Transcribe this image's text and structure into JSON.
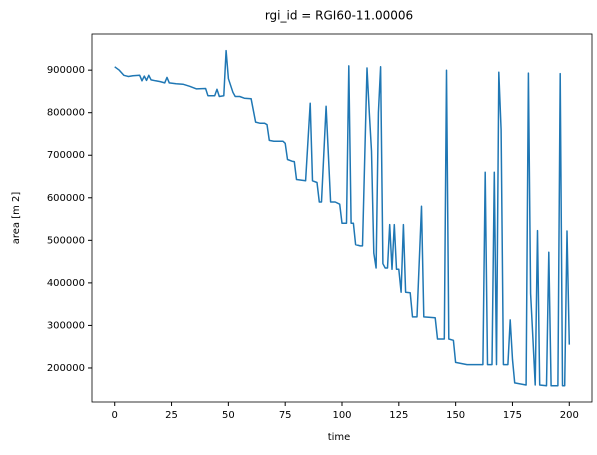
{
  "chart_data": {
    "type": "line",
    "title": "rgi_id = RGI60-11.00006",
    "xlabel": "time",
    "ylabel": "area [m 2]",
    "xlim": [
      -10,
      210
    ],
    "ylim": [
      120000,
      985000
    ],
    "xticks": [
      0,
      25,
      50,
      75,
      100,
      125,
      150,
      175,
      200
    ],
    "yticks": [
      200000,
      300000,
      400000,
      500000,
      600000,
      700000,
      800000,
      900000
    ],
    "series": [
      {
        "name": "area",
        "color": "#1f77b4",
        "x": [
          0,
          2,
          4,
          6,
          8,
          11,
          12,
          13,
          14,
          15,
          16,
          18,
          20,
          22,
          23,
          24,
          27,
          30,
          33,
          36,
          40,
          41,
          44,
          45,
          46,
          48,
          49,
          50,
          52,
          53,
          55,
          57,
          60,
          62,
          64,
          66,
          67,
          68,
          70,
          74,
          75,
          76,
          78,
          79,
          80,
          84,
          86,
          87,
          89,
          90,
          91,
          93,
          94,
          95,
          97,
          99,
          100,
          102,
          103,
          104,
          105,
          106,
          108,
          109,
          111,
          112,
          113,
          114,
          115,
          116,
          117,
          118,
          119,
          120,
          121,
          122,
          123,
          124,
          125,
          126,
          127,
          128,
          130,
          131,
          133,
          135,
          136,
          141,
          142,
          145,
          146,
          147,
          149,
          150,
          155,
          162,
          163,
          164,
          166,
          167,
          168,
          169,
          170,
          171,
          173,
          174,
          175,
          176,
          181,
          182,
          183,
          184,
          185,
          186,
          187,
          190,
          191,
          192,
          195,
          196,
          197,
          198,
          199,
          200
        ],
        "values": [
          908000,
          900000,
          888000,
          885000,
          887000,
          888000,
          875000,
          886000,
          876000,
          888000,
          877000,
          875000,
          873000,
          870000,
          883000,
          870000,
          868000,
          867000,
          862000,
          856000,
          857000,
          840000,
          840000,
          855000,
          838000,
          840000,
          946000,
          880000,
          848000,
          838000,
          838000,
          834000,
          833000,
          778000,
          775000,
          775000,
          772000,
          735000,
          733000,
          733000,
          728000,
          690000,
          686000,
          685000,
          643000,
          640000,
          822000,
          640000,
          636000,
          590000,
          590000,
          815000,
          700000,
          590000,
          590000,
          585000,
          540000,
          540000,
          910000,
          540000,
          540000,
          490000,
          487000,
          487000,
          905000,
          800000,
          710000,
          470000,
          435000,
          800000,
          908000,
          445000,
          435000,
          435000,
          537000,
          432000,
          537000,
          432000,
          432000,
          378000,
          537000,
          378000,
          377000,
          320000,
          320000,
          580000,
          320000,
          318000,
          268000,
          268000,
          900000,
          268000,
          265000,
          213000,
          208000,
          208000,
          660000,
          208000,
          208000,
          660000,
          208000,
          895000,
          760000,
          208000,
          208000,
          313000,
          220000,
          165000,
          160000,
          893000,
          375000,
          270000,
          160000,
          523000,
          160000,
          158000,
          472000,
          158000,
          158000,
          892000,
          158000,
          158000,
          522000,
          255000
        ]
      }
    ]
  }
}
